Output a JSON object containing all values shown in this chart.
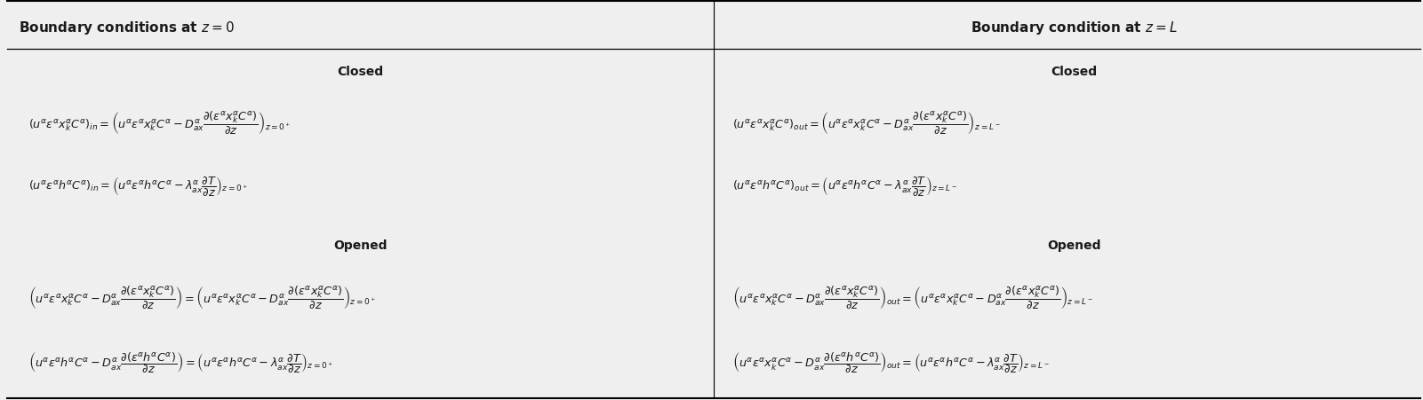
{
  "fig_width": 16.01,
  "fig_height": 4.52,
  "bg_color": "#efefef",
  "text_color": "#1a1a1a",
  "header_left": "Boundary conditions at $z=0$",
  "header_right": "Boundary condition at $z=L$",
  "left_closed_title": "Closed",
  "right_closed_title": "Closed",
  "left_opened_title": "Opened",
  "right_opened_title": "Opened",
  "font_size_header": 11,
  "font_size_title": 10,
  "font_size_eq": 9.2
}
